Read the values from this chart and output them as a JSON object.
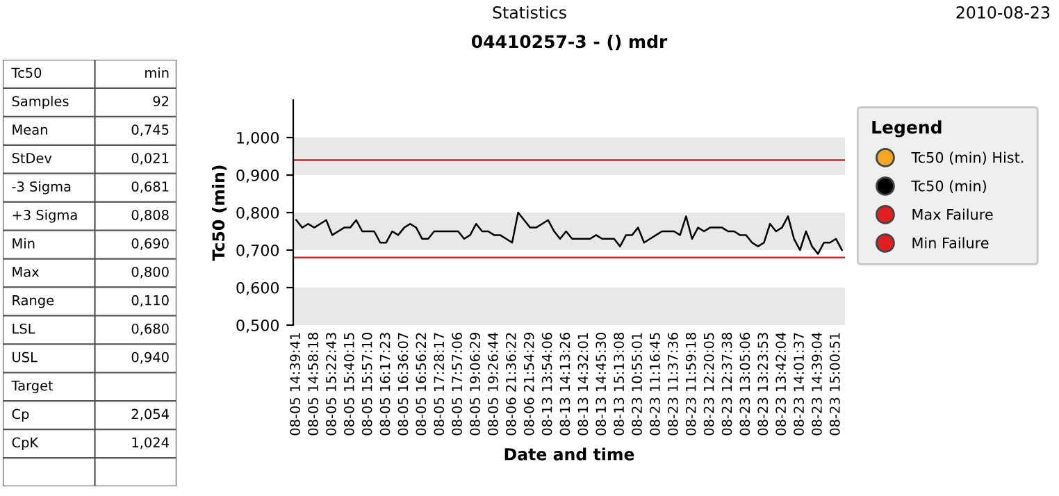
{
  "chart_data": [
    {
      "type": "other",
      "title": "Statistics",
      "annotations": [
        "2010-08-23"
      ],
      "categories": [
        "Tc50",
        "Samples",
        "Mean",
        "StDev",
        "-3 Sigma",
        "+3 Sigma",
        "Min",
        "Max",
        "Range",
        "LSL",
        "USL",
        "Target",
        "Cp",
        "CpK",
        null
      ],
      "value_labels": [
        "min",
        "92",
        "0,745",
        "0,021",
        "0,681",
        "0,808",
        "0,690",
        "0,800",
        "0,110",
        "0,680",
        "0,940",
        null,
        "2,054",
        "1,024",
        null
      ]
    },
    {
      "type": "line",
      "title": "04410257-3 - () mdr",
      "xlabel": "Date and time",
      "ylabel": "Tc50 (min)",
      "legend_title": "Legend",
      "legend": "right",
      "categories": [
        "08-05 14:39:41",
        null,
        null,
        "08-05 14:58:18",
        null,
        null,
        "08-05 15:22:43",
        null,
        null,
        "08-05 15:40:15",
        null,
        null,
        "08-05 15:57:10",
        null,
        null,
        "08-05 16:17:23",
        null,
        null,
        "08-05 16:36:07",
        null,
        null,
        "08-05 16:56:22",
        null,
        null,
        "08-05 17:28:17",
        null,
        null,
        "08-05 17:57:06",
        null,
        null,
        "08-05 19:06:29",
        null,
        null,
        "08-05 19:26:44",
        null,
        null,
        "08-06 21:36:22",
        null,
        null,
        "08-06 21:54:29",
        null,
        null,
        "08-13 13:54:06",
        null,
        null,
        "08-13 14:13:26",
        null,
        null,
        "08-13 14:32:01",
        null,
        null,
        "08-13 14:45:30",
        null,
        null,
        "08-13 15:13:08",
        null,
        null,
        "08-23 10:55:01",
        null,
        null,
        "08-23 11:16:45",
        null,
        null,
        "08-23 11:37:36",
        null,
        null,
        "08-23 11:59:18",
        null,
        null,
        "08-23 12:20:05",
        null,
        null,
        "08-23 12:37:38",
        null,
        null,
        "08-23 13:05:06",
        null,
        null,
        "08-23 13:23:53",
        null,
        null,
        "08-23 13:42:04",
        null,
        null,
        "08-23 14:01:37",
        null,
        null,
        "08-23 14:39:04",
        null,
        null,
        "08-23 15:00:51",
        null
      ],
      "series": [
        {
          "name": "Tc50 (min) Hist.",
          "color": "#f5a623",
          "values": [
            null,
            null,
            null,
            null,
            null,
            null,
            null,
            null,
            null,
            null,
            null,
            null,
            null,
            null,
            null,
            null,
            null,
            null,
            null,
            null,
            null,
            null,
            null,
            null,
            null,
            null,
            null,
            null,
            null,
            null,
            null,
            null,
            null,
            null,
            null,
            null,
            null,
            null,
            null,
            null,
            null,
            null,
            null,
            null,
            null,
            null,
            null,
            null,
            null,
            null,
            null,
            null,
            null,
            null,
            null,
            null,
            null,
            null,
            null,
            null,
            null,
            null,
            null,
            null,
            null,
            null,
            null,
            null,
            null,
            null,
            null,
            null,
            null,
            null,
            null,
            null,
            null,
            null,
            null,
            null,
            null,
            null,
            null,
            null,
            null,
            null,
            null,
            null,
            null,
            null,
            null,
            null
          ]
        },
        {
          "name": "Tc50 (min)",
          "color": "#000000",
          "values": [
            0.78,
            0.76,
            0.77,
            0.76,
            0.77,
            0.78,
            0.74,
            0.75,
            0.76,
            0.76,
            0.78,
            0.75,
            0.75,
            0.75,
            0.72,
            0.72,
            0.75,
            0.74,
            0.76,
            0.77,
            0.76,
            0.73,
            0.73,
            0.75,
            0.75,
            0.75,
            0.75,
            0.75,
            0.73,
            0.74,
            0.77,
            0.75,
            0.75,
            0.74,
            0.74,
            0.73,
            0.72,
            0.8,
            0.78,
            0.76,
            0.76,
            0.77,
            0.78,
            0.75,
            0.73,
            0.75,
            0.73,
            0.73,
            0.73,
            0.73,
            0.74,
            0.73,
            0.73,
            0.73,
            0.71,
            0.74,
            0.74,
            0.76,
            0.72,
            0.73,
            0.74,
            0.75,
            0.75,
            0.75,
            0.74,
            0.79,
            0.73,
            0.76,
            0.75,
            0.76,
            0.76,
            0.76,
            0.75,
            0.75,
            0.74,
            0.74,
            0.72,
            0.71,
            0.72,
            0.77,
            0.75,
            0.76,
            0.79,
            0.73,
            0.7,
            0.75,
            0.71,
            0.69,
            0.72,
            0.72,
            0.73,
            0.7
          ]
        }
      ],
      "ref_lines": [
        {
          "axis": "y",
          "value": 0.94,
          "label": "Max Failure",
          "color": "#e02020"
        },
        {
          "axis": "y",
          "value": 0.68,
          "label": "Min Failure",
          "color": "#e02020"
        }
      ],
      "bands": [
        {
          "axis": "y",
          "from": 0.5,
          "to": 0.6,
          "color": "#e8e8e8"
        },
        {
          "axis": "y",
          "from": 0.7,
          "to": 0.8,
          "color": "#e8e8e8"
        },
        {
          "axis": "y",
          "from": 0.9,
          "to": 1.0,
          "color": "#e8e8e8"
        }
      ],
      "ylim": [
        0.5,
        1.1
      ],
      "yticks": [
        {
          "value": 0.5,
          "label": "0,500"
        },
        {
          "value": 0.6,
          "label": "0,600"
        },
        {
          "value": 0.7,
          "label": "0,700"
        },
        {
          "value": 0.8,
          "label": "0,800"
        },
        {
          "value": 0.9,
          "label": "0,900"
        },
        {
          "value": 1.0,
          "label": "1,000"
        }
      ],
      "grid": false
    }
  ]
}
